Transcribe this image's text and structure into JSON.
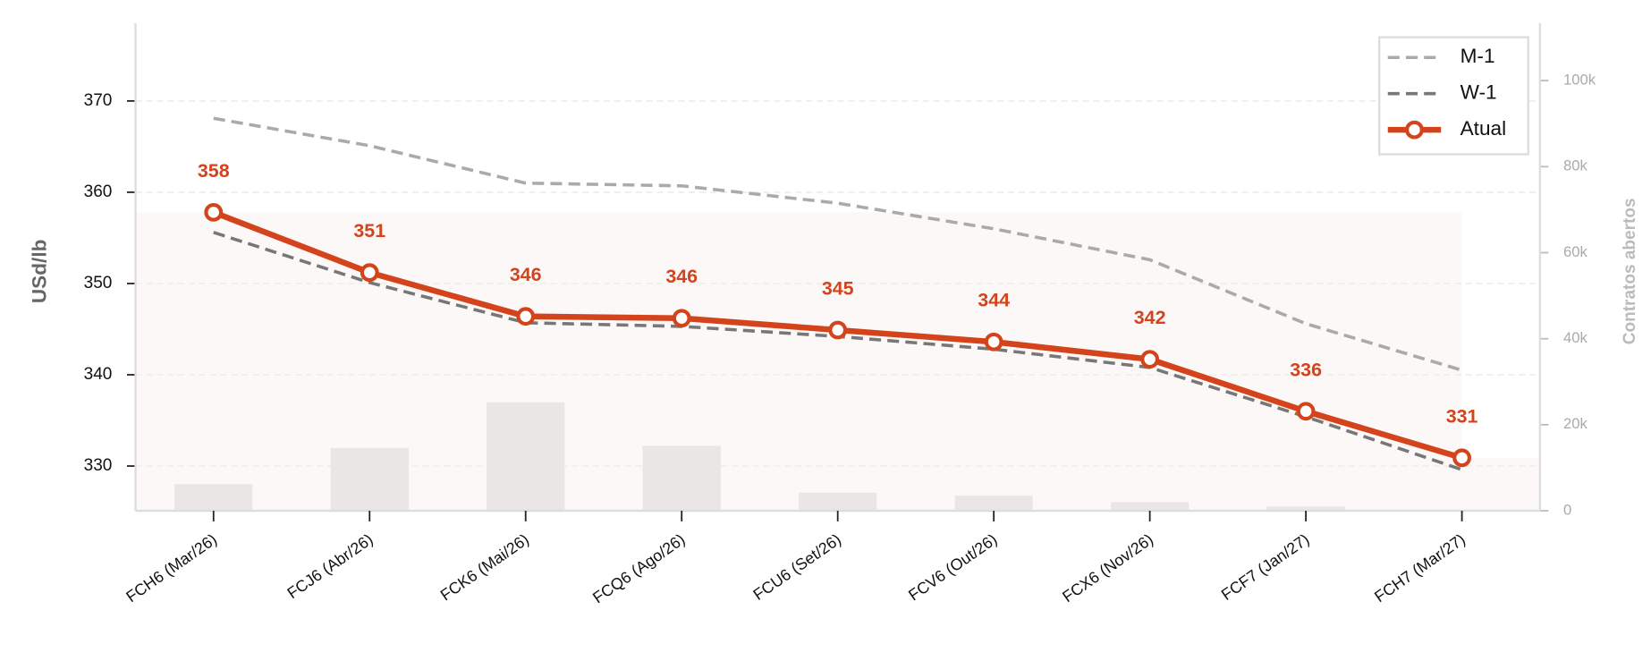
{
  "chart_data": {
    "type": "line",
    "categories": [
      "FCH6 (Mar/26)",
      "FCJ6 (Abr/26)",
      "FCK6 (Mai/26)",
      "FCQ6 (Ago/26)",
      "FCU6 (Set/26)",
      "FCV6 (Out/26)",
      "FCX6 (Nov/26)",
      "FCF7 (Jan/27)",
      "FCH7 (Mar/27)"
    ],
    "ylabel": "USd/lb",
    "y2label": "Contratos abertos",
    "ylim": [
      325.1,
      378.5
    ],
    "yticks": [
      330,
      340,
      350,
      360,
      370
    ],
    "y2lim": [
      0,
      113300
    ],
    "y2ticks": [
      0,
      {
        "value": 20000,
        "label": "20k"
      },
      {
        "value": 40000,
        "label": "40k"
      },
      {
        "value": 60000,
        "label": "60k"
      },
      {
        "value": 80000,
        "label": "80k"
      },
      {
        "value": 100000,
        "label": "100k"
      }
    ],
    "grid": true,
    "legend": "upper right",
    "series": [
      {
        "name": "M-1",
        "color": "#aaaaaa",
        "dashed": true,
        "values": [
          368.1,
          365.1,
          361.0,
          360.7,
          358.8,
          356.0,
          352.6,
          345.6,
          340.5
        ]
      },
      {
        "name": "W-1",
        "color": "#777777",
        "dashed": true,
        "values": [
          355.6,
          350.1,
          345.7,
          345.3,
          344.2,
          342.8,
          340.8,
          335.4,
          329.6
        ]
      },
      {
        "name": "Atual",
        "color": "#d4441c",
        "values": [
          357.8,
          351.2,
          346.4,
          346.2,
          344.9,
          343.6,
          341.7,
          336.0,
          330.9
        ],
        "value_labels": [
          "358",
          "351",
          "346",
          "346",
          "345",
          "344",
          "342",
          "336",
          "331"
        ]
      }
    ],
    "bars": {
      "axis": "y2",
      "color": "#e9e6e5",
      "values": [
        6200,
        14600,
        25200,
        15100,
        4200,
        3500,
        2000,
        1000,
        0
      ]
    }
  }
}
